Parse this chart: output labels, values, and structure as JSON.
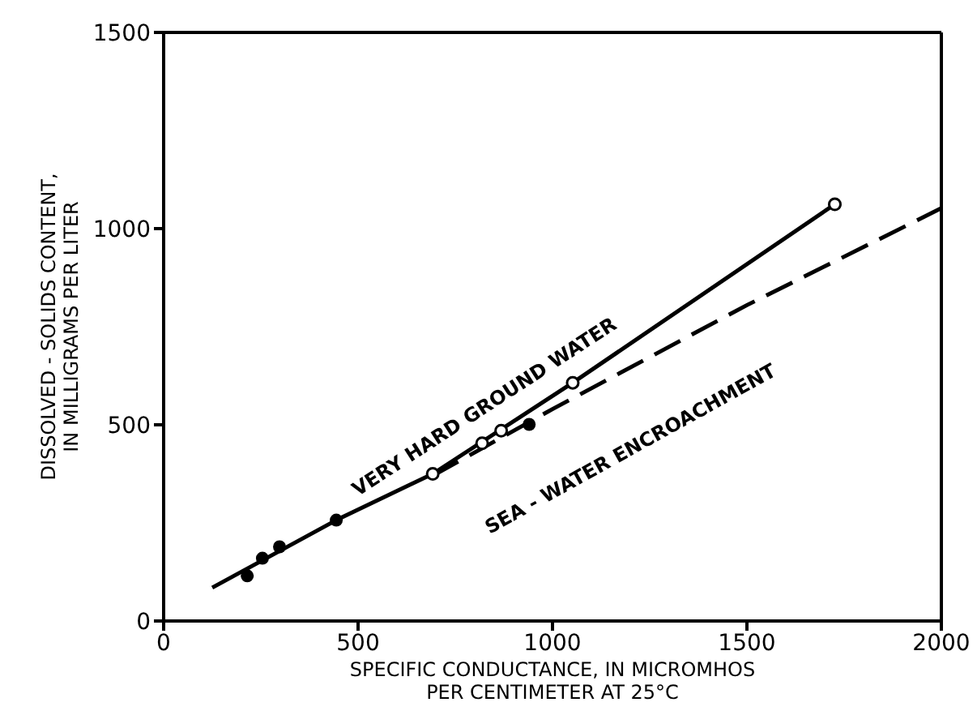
{
  "chart_data": {
    "type": "line",
    "xlabel": "SPECIFIC CONDUCTANCE, IN MICROMHOS\nPER CENTIMETER AT 25°C",
    "ylabel": "DISSOLVED - SOLIDS CONTENT,\nIN MILLIGRAMS PER LITER",
    "xlim": [
      0,
      2000
    ],
    "xticks": [
      0,
      500,
      1000,
      1500,
      2000
    ],
    "ylim": [
      0,
      1500
    ],
    "yticks": [
      0,
      500,
      1000,
      1500
    ],
    "grid": false,
    "legend": false,
    "series": [
      {
        "name": "VERY HARD GROUND WATER",
        "color": "#000000",
        "line_style": "solid",
        "marker": "none",
        "x": [
          125,
          444,
          692,
          1052,
          1726
        ],
        "values": [
          85,
          257,
          375,
          607,
          1062
        ]
      },
      {
        "name": "SEA - WATER ENCROACHMENT",
        "color": "#000000",
        "line_style": "dashed",
        "marker": "none",
        "x": [
          692,
          1000,
          1500,
          2000
        ],
        "values": [
          370,
          540,
          805,
          1052
        ]
      },
      {
        "type": "scatter",
        "color": "#000000",
        "marker": "circle",
        "x": [
          215,
          254,
          298,
          444,
          940
        ],
        "values": [
          115,
          160,
          189,
          257,
          501
        ]
      },
      {
        "type": "scatter",
        "color": "#000000",
        "marker": "circle-open",
        "x": [
          692,
          819,
          868,
          1052,
          1726
        ],
        "values": [
          375,
          453,
          485,
          607,
          1062
        ]
      }
    ]
  }
}
